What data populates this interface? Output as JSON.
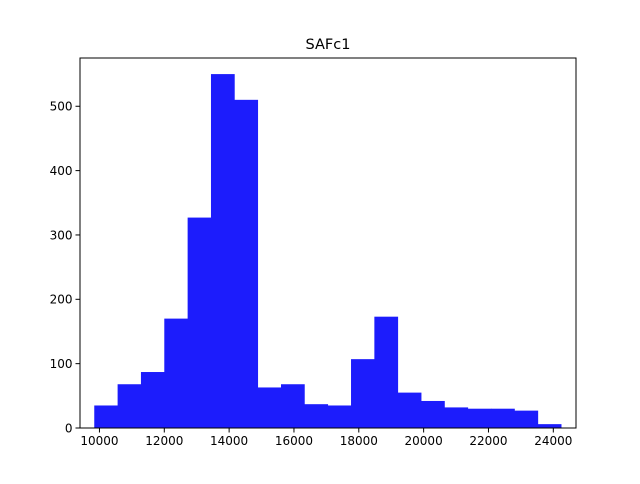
{
  "chart_data": {
    "type": "bar",
    "title": "SAFc1",
    "xlabel": "",
    "ylabel": "",
    "xlim": [
      9400,
      24700
    ],
    "ylim": [
      0,
      575
    ],
    "bar_color": "#1c1cfc",
    "grid": false,
    "legend": "none",
    "bin_edges": [
      9840,
      10560,
      11280,
      12000,
      12720,
      13440,
      14160,
      14880,
      15600,
      16320,
      17040,
      17760,
      18480,
      19200,
      19920,
      20640,
      21360,
      22080,
      22800,
      23520,
      24240
    ],
    "values": [
      35,
      68,
      87,
      170,
      327,
      550,
      510,
      63,
      68,
      37,
      35,
      107,
      173,
      55,
      42,
      32,
      30,
      30,
      27,
      6
    ],
    "x_ticks": [
      10000,
      12000,
      14000,
      16000,
      18000,
      20000,
      22000,
      24000
    ],
    "y_ticks": [
      0,
      100,
      200,
      300,
      400,
      500
    ]
  }
}
